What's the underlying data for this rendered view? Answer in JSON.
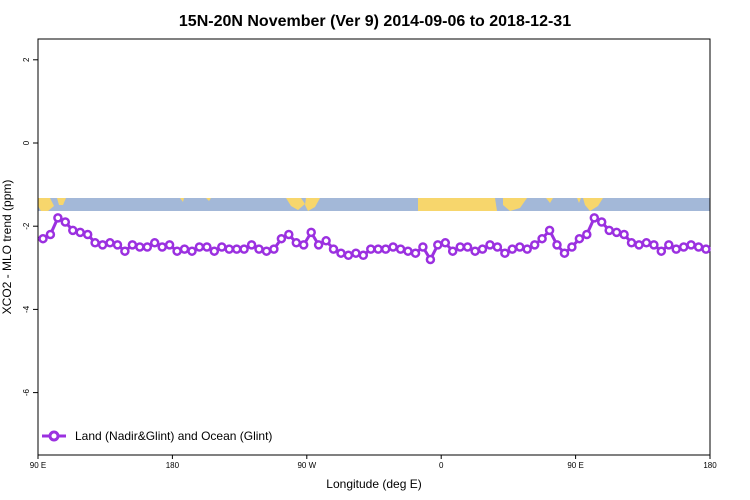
{
  "chart_data": {
    "type": "line",
    "title": "15N-20N November (Ver 9)   2014-09-06 to 2018-12-31",
    "xlabel": "Longitude (deg E)",
    "ylabel": "XCO2 - MLO trend (ppm)",
    "x_tick_labels": [
      "90 E",
      "180",
      "90 W",
      "0",
      "90 E",
      "180"
    ],
    "y_tick_labels": [
      "2",
      "0",
      "-2",
      "-4",
      "-6"
    ],
    "ylim": [
      -7.5,
      2.5
    ],
    "legend": {
      "label": "Land (Nadir&Glint) and Ocean (Glint)",
      "position": "bottom-left"
    },
    "colors": {
      "series": "#9b30e0",
      "ocean_band": "#a3b8d8",
      "land_band": "#f7d66c"
    },
    "series": [
      {
        "name": "Land (Nadir&Glint) and Ocean (Glint)",
        "values": [
          -2.3,
          -2.2,
          -1.8,
          -1.9,
          -2.1,
          -2.15,
          -2.2,
          -2.4,
          -2.45,
          -2.4,
          -2.45,
          -2.6,
          -2.45,
          -2.5,
          -2.5,
          -2.4,
          -2.5,
          -2.45,
          -2.6,
          -2.55,
          -2.6,
          -2.5,
          -2.5,
          -2.6,
          -2.5,
          -2.55,
          -2.55,
          -2.55,
          -2.45,
          -2.55,
          -2.6,
          -2.55,
          -2.3,
          -2.2,
          -2.4,
          -2.45,
          -2.15,
          -2.45,
          -2.35,
          -2.55,
          -2.65,
          -2.7,
          -2.65,
          -2.7,
          -2.55,
          -2.55,
          -2.55,
          -2.5,
          -2.55,
          -2.6,
          -2.65,
          -2.5,
          -2.8,
          -2.45,
          -2.4,
          -2.6,
          -2.5,
          -2.5,
          -2.6,
          -2.55,
          -2.45,
          -2.5,
          -2.65,
          -2.55,
          -2.5,
          -2.55,
          -2.45,
          -2.3,
          -2.1,
          -2.45,
          -2.65,
          -2.5,
          -2.3,
          -2.2,
          -1.8,
          -1.9,
          -2.1,
          -2.15,
          -2.2,
          -2.4,
          -2.45,
          -2.4,
          -2.45,
          -2.6,
          -2.45,
          -2.55,
          -2.5,
          -2.45,
          -2.5,
          -2.55
        ]
      }
    ]
  }
}
